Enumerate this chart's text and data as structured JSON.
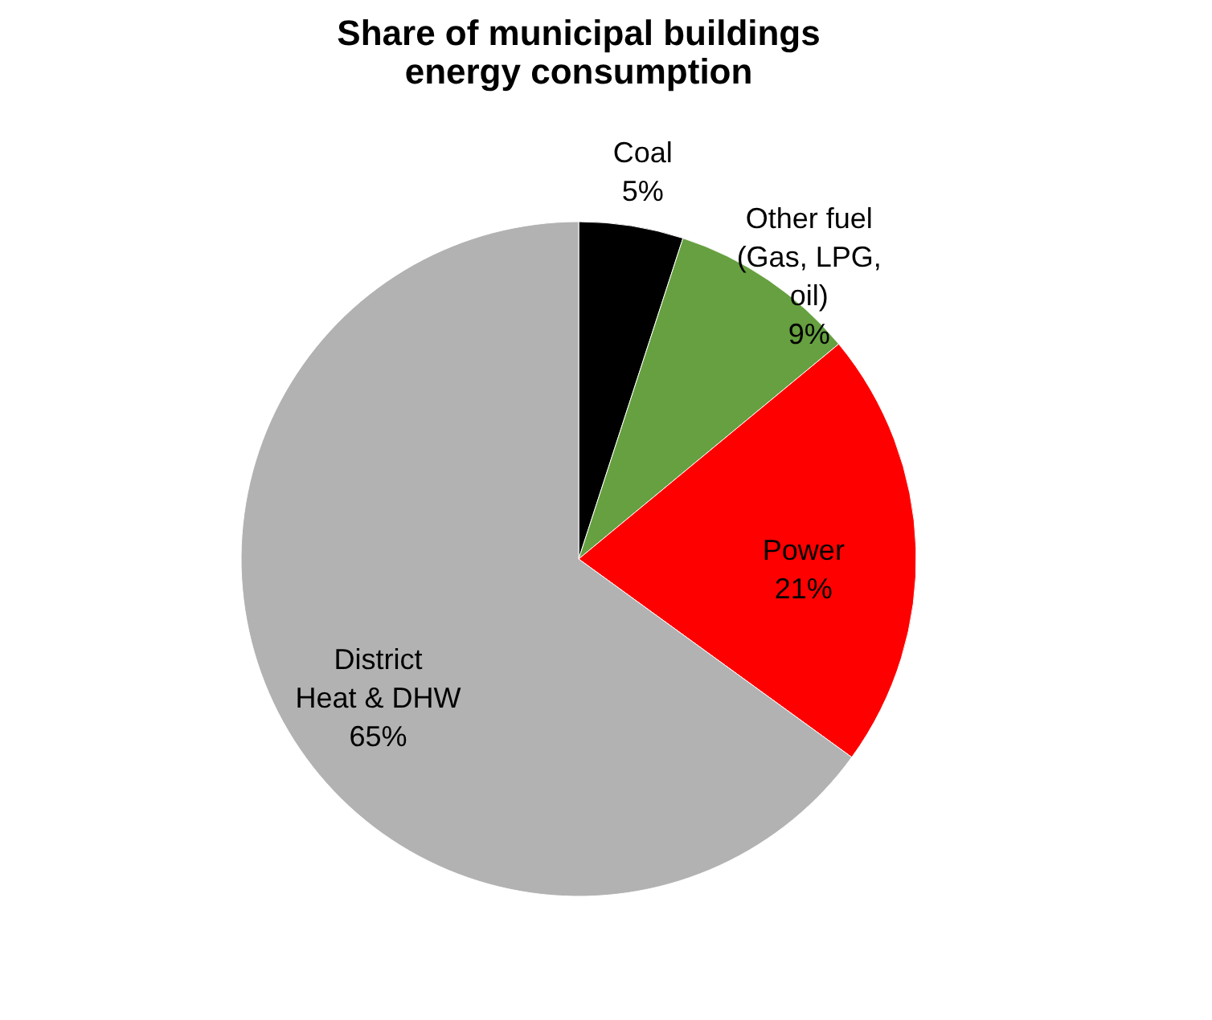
{
  "chart_data": {
    "type": "pie",
    "title": "Share of municipal buildings energy consumption",
    "categories": [
      "Coal",
      "Other fuel (Gas, LPG, oil)",
      "Power",
      "District Heat & DHW"
    ],
    "values": [
      5,
      9,
      21,
      65
    ],
    "colors": [
      "#000000",
      "#66a040",
      "#ff0000",
      "#b2b2b2"
    ],
    "value_labels": [
      "5%",
      "9%",
      "21%",
      "65%"
    ],
    "legend": false
  }
}
